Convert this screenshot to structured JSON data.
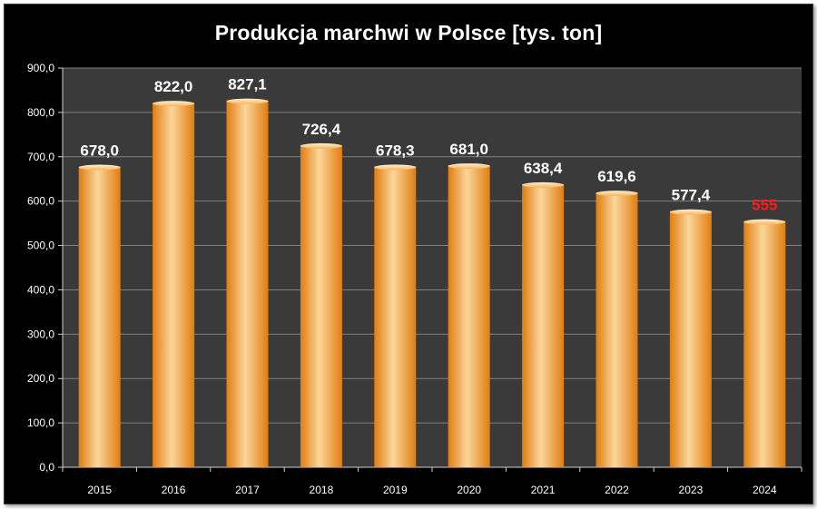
{
  "chart_data": {
    "type": "bar",
    "title": "Produkcja marchwi w Polsce [tys. ton]",
    "xlabel": "",
    "ylabel": "",
    "categories": [
      "2015",
      "2016",
      "2017",
      "2018",
      "2019",
      "2020",
      "2021",
      "2022",
      "2023",
      "2024"
    ],
    "values": [
      678.0,
      822.0,
      827.1,
      726.4,
      678.3,
      681.0,
      638.4,
      619.6,
      577.4,
      555
    ],
    "data_labels": [
      "678,0",
      "822,0",
      "827,1",
      "726,4",
      "678,3",
      "681,0",
      "638,4",
      "619,6",
      "577,4",
      "555"
    ],
    "ylim": [
      0,
      900
    ],
    "y_ticks": [
      0,
      100,
      200,
      300,
      400,
      500,
      600,
      700,
      800,
      900
    ],
    "y_tick_labels": [
      "0,0",
      "100,0",
      "200,0",
      "300,0",
      "400,0",
      "500,0",
      "600,0",
      "700,0",
      "800,0",
      "900,0"
    ],
    "grid": true,
    "legend": "none",
    "colors": {
      "background": "#000000",
      "plot_area": "#3a3a3a",
      "gridline": "#7f7f7f",
      "bar_light": "#fcd69b",
      "bar_mid": "#f9a33d",
      "bar_dark": "#e07d10",
      "label": "#ffffff",
      "highlight_label": "#ff1a1a"
    },
    "highlight_index": 9
  }
}
